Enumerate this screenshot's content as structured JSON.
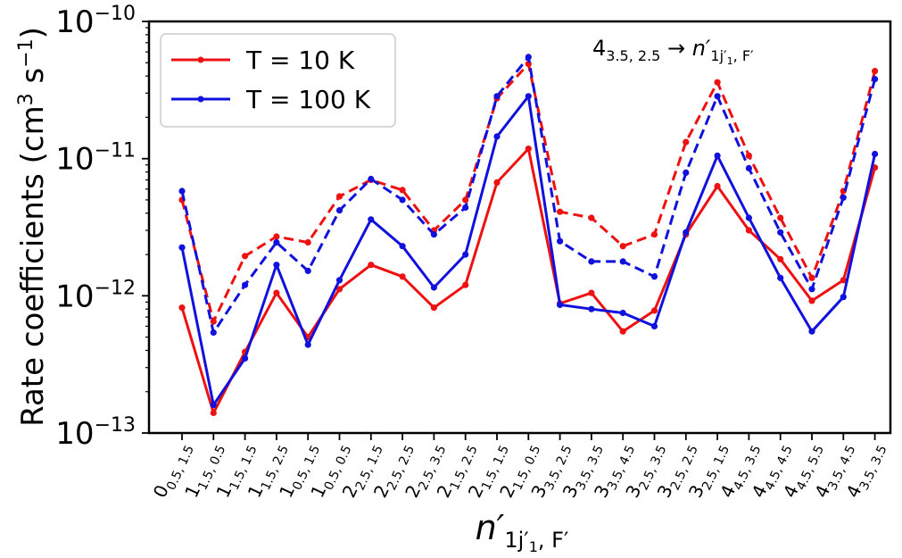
{
  "chart_data": {
    "type": "line",
    "yscale": "log",
    "ylim": [
      1e-13,
      1e-10
    ],
    "ylabel": {
      "pre": "Rate coefficients (cm",
      "sup1": "3",
      "mid": " s",
      "sup2": "−1",
      "post": ")"
    },
    "xlabel": {
      "base": "n′",
      "sub": "1j′",
      "subsub": "1",
      "subtail": ", F′"
    },
    "annotation": {
      "base": "4",
      "sub": "3.5, 2.5",
      "arrow": " → ",
      "target": "n′",
      "tsub": "1j′",
      "tsubsub": "1",
      "tsubtail": ", F′"
    },
    "yticks": [
      {
        "base": "10",
        "exp": "−13",
        "value": 1e-13
      },
      {
        "base": "10",
        "exp": "−12",
        "value": 1e-12
      },
      {
        "base": "10",
        "exp": "−11",
        "value": 1e-11
      },
      {
        "base": "10",
        "exp": "−10",
        "value": 1e-10
      }
    ],
    "categories": [
      {
        "n": "0",
        "sub": "0.5, 1.5"
      },
      {
        "n": "1",
        "sub": "1.5, 0.5"
      },
      {
        "n": "1",
        "sub": "1.5, 1.5"
      },
      {
        "n": "1",
        "sub": "1.5, 2.5"
      },
      {
        "n": "1",
        "sub": "0.5, 1.5"
      },
      {
        "n": "1",
        "sub": "0.5, 0.5"
      },
      {
        "n": "2",
        "sub": "2.5, 1.5"
      },
      {
        "n": "2",
        "sub": "2.5, 2.5"
      },
      {
        "n": "2",
        "sub": "2.5, 3.5"
      },
      {
        "n": "2",
        "sub": "1.5, 2.5"
      },
      {
        "n": "2",
        "sub": "1.5, 1.5"
      },
      {
        "n": "2",
        "sub": "1.5, 0.5"
      },
      {
        "n": "3",
        "sub": "3.5, 2.5"
      },
      {
        "n": "3",
        "sub": "3.5, 3.5"
      },
      {
        "n": "3",
        "sub": "3.5, 4.5"
      },
      {
        "n": "3",
        "sub": "2.5, 3.5"
      },
      {
        "n": "3",
        "sub": "2.5, 2.5"
      },
      {
        "n": "3",
        "sub": "2.5, 1.5"
      },
      {
        "n": "4",
        "sub": "4.5, 3.5"
      },
      {
        "n": "4",
        "sub": "4.5, 4.5"
      },
      {
        "n": "4",
        "sub": "4.5, 5.5"
      },
      {
        "n": "4",
        "sub": "3.5, 4.5"
      },
      {
        "n": "4",
        "sub": "3.5, 3.5"
      }
    ],
    "legend": {
      "position": "upper left",
      "entries": [
        {
          "label": "T = 10 K",
          "color": "#ee1111"
        },
        {
          "label": "T = 100 K",
          "color": "#1111dd"
        }
      ]
    },
    "series": [
      {
        "temperature": "10 K",
        "style": "solid",
        "color": "#ee1111",
        "values": [
          8.2e-13,
          1.4e-13,
          3.9e-13,
          1.05e-12,
          5e-13,
          1.12e-12,
          1.68e-12,
          1.38e-12,
          8.2e-13,
          1.2e-12,
          6.7e-12,
          1.18e-11,
          8.8e-13,
          1.05e-12,
          5.5e-13,
          7.8e-13,
          2.8e-12,
          6.3e-12,
          3e-12,
          1.85e-12,
          9.2e-13,
          1.3e-12,
          8.6e-12
        ]
      },
      {
        "temperature": "100 K",
        "style": "solid",
        "color": "#1111dd",
        "values": [
          2.25e-12,
          1.6e-13,
          3.5e-13,
          1.68e-12,
          4.4e-13,
          1.3e-12,
          3.6e-12,
          2.3e-12,
          1.15e-12,
          2e-12,
          1.45e-11,
          2.85e-11,
          8.6e-13,
          8e-13,
          7.5e-13,
          6e-13,
          2.9e-12,
          1.05e-11,
          3.7e-12,
          1.35e-12,
          5.5e-13,
          9.8e-13,
          1.08e-11
        ]
      },
      {
        "temperature": "10 K",
        "style": "dashed",
        "color": "#ee1111",
        "values": [
          5e-12,
          6.5e-13,
          1.95e-12,
          2.7e-12,
          2.45e-12,
          5.3e-12,
          7e-12,
          5.9e-12,
          3e-12,
          5e-12,
          2.75e-11,
          4.9e-11,
          4.1e-12,
          3.7e-12,
          2.3e-12,
          2.8e-12,
          1.32e-11,
          3.6e-11,
          1.05e-11,
          3.7e-12,
          1.35e-12,
          5.8e-12,
          4.35e-11
        ]
      },
      {
        "temperature": "100 K",
        "style": "dashed",
        "color": "#1111dd",
        "values": [
          5.8e-12,
          5.4e-13,
          1.2e-12,
          2.45e-12,
          1.52e-12,
          4.2e-12,
          7.1e-12,
          5e-12,
          2.8e-12,
          4.4e-12,
          2.85e-11,
          5.5e-11,
          2.5e-12,
          1.78e-12,
          1.78e-12,
          1.38e-12,
          7.9e-12,
          2.85e-11,
          8.5e-12,
          2.9e-12,
          1.12e-12,
          5.2e-12,
          3.8e-11
        ]
      }
    ]
  }
}
